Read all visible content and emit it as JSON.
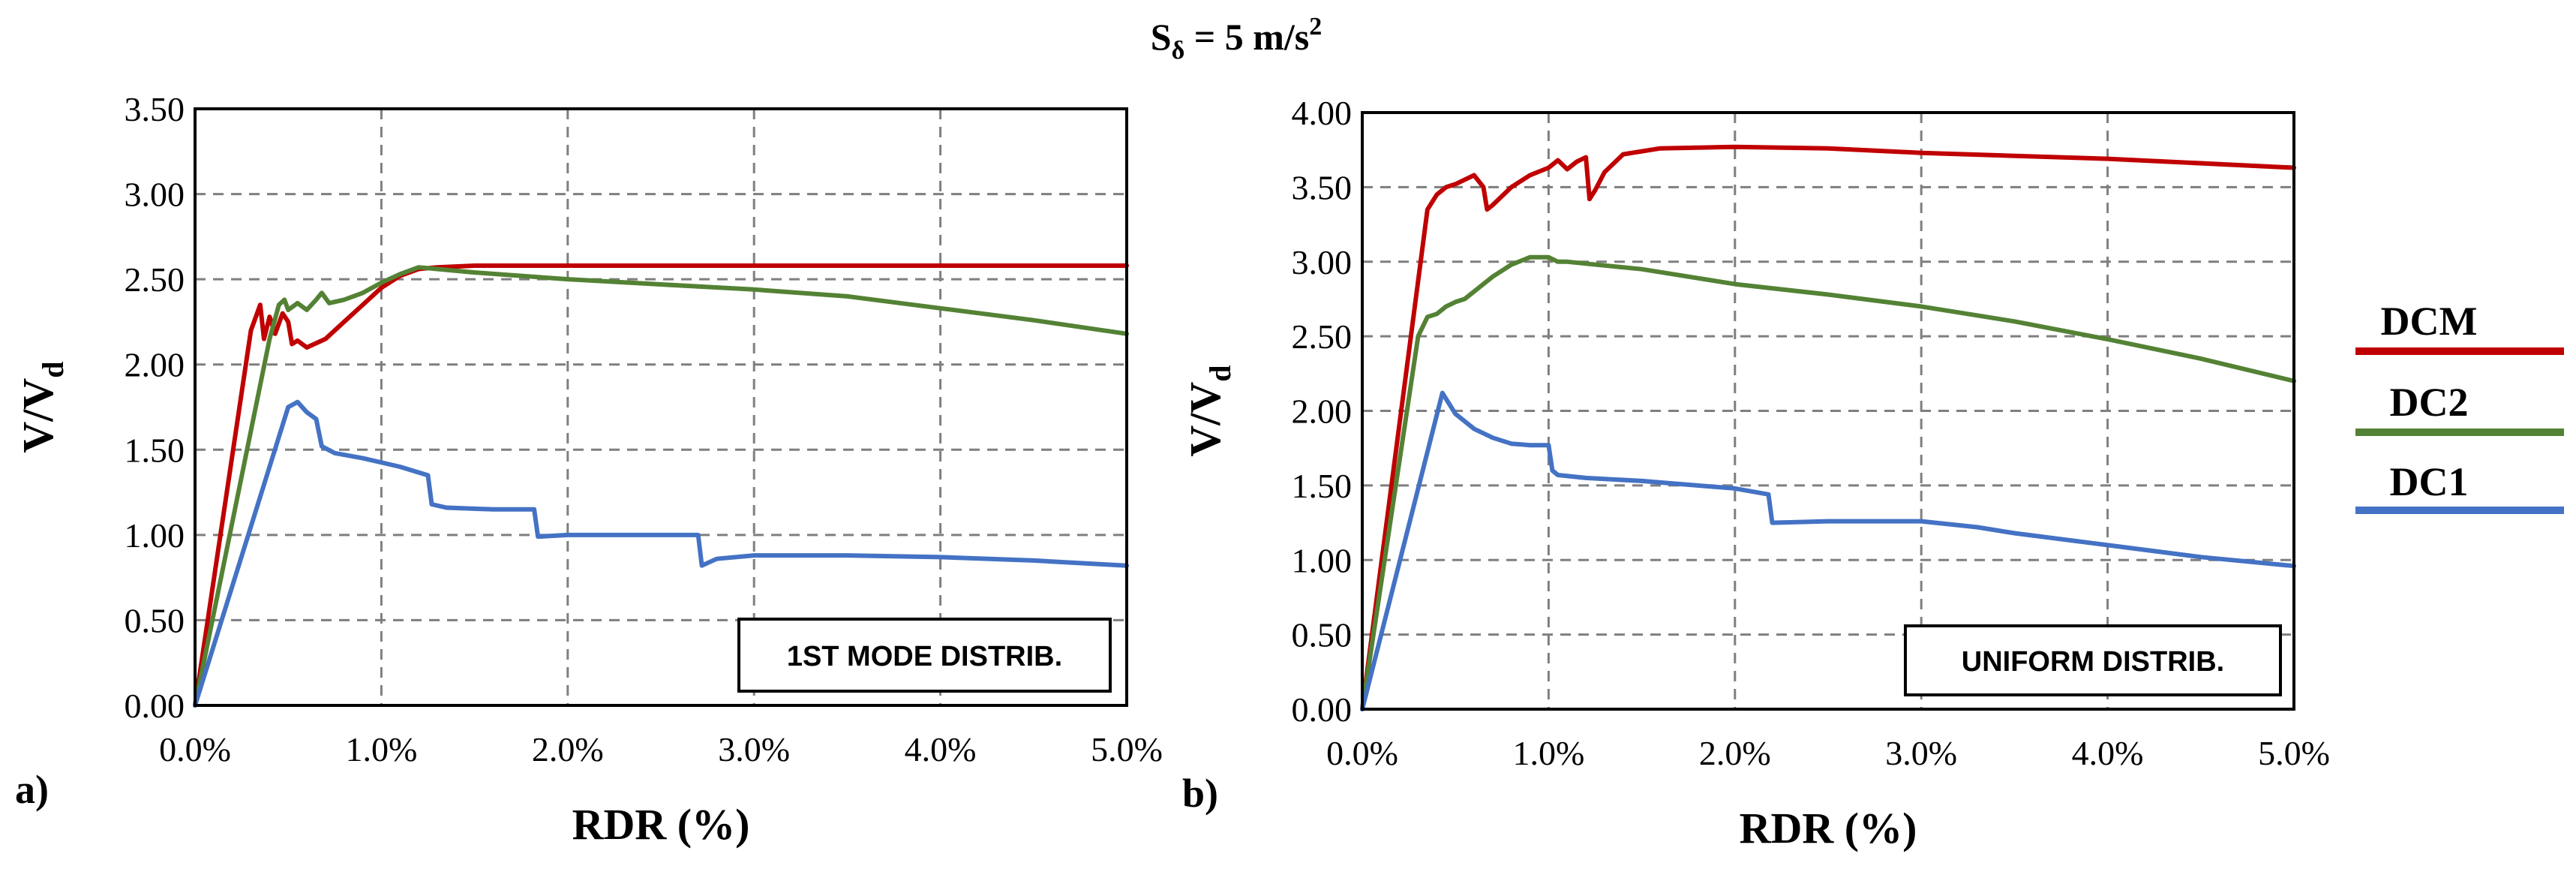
{
  "figure": {
    "suptitle_main": "S",
    "suptitle_sub": "δ",
    "suptitle_rest": " = 5 m/s",
    "suptitle_sup": "2"
  },
  "legend": {
    "entries": [
      {
        "label": "DCM",
        "color": "#c00000"
      },
      {
        "label": "DC2",
        "color": "#548235"
      },
      {
        "label": "DC1",
        "color": "#4472c4"
      }
    ]
  },
  "chart_data": [
    {
      "type": "line",
      "panel_label": "a)",
      "box_label": "1ST MODE DISTRIB.",
      "xlabel": "RDR (%)",
      "ylabel_main": "V/V",
      "ylabel_sub": "d",
      "xlim": [
        0,
        5
      ],
      "ylim": [
        0,
        3.5
      ],
      "xticks": [
        0,
        1,
        2,
        3,
        4,
        5
      ],
      "xtick_labels": [
        "0.0%",
        "1.0%",
        "2.0%",
        "3.0%",
        "4.0%",
        "5.0%"
      ],
      "yticks": [
        0,
        0.5,
        1,
        1.5,
        2,
        2.5,
        3,
        3.5
      ],
      "ytick_labels": [
        "0.00",
        "0.50",
        "1.00",
        "1.50",
        "2.00",
        "2.50",
        "3.00",
        "3.50"
      ],
      "grid": true,
      "series": [
        {
          "name": "DCM",
          "color": "#c00000",
          "points": [
            [
              0,
              0
            ],
            [
              0.3,
              2.2
            ],
            [
              0.35,
              2.35
            ],
            [
              0.37,
              2.15
            ],
            [
              0.4,
              2.28
            ],
            [
              0.43,
              2.18
            ],
            [
              0.47,
              2.3
            ],
            [
              0.5,
              2.25
            ],
            [
              0.52,
              2.12
            ],
            [
              0.55,
              2.14
            ],
            [
              0.6,
              2.1
            ],
            [
              0.7,
              2.15
            ],
            [
              0.8,
              2.25
            ],
            [
              0.9,
              2.35
            ],
            [
              1.0,
              2.45
            ],
            [
              1.1,
              2.52
            ],
            [
              1.2,
              2.56
            ],
            [
              1.3,
              2.57
            ],
            [
              1.5,
              2.58
            ],
            [
              2.0,
              2.58
            ],
            [
              2.5,
              2.58
            ],
            [
              3.0,
              2.58
            ],
            [
              4.0,
              2.58
            ],
            [
              5.0,
              2.58
            ]
          ]
        },
        {
          "name": "DC2",
          "color": "#548235",
          "points": [
            [
              0,
              0
            ],
            [
              0.4,
              2.15
            ],
            [
              0.45,
              2.35
            ],
            [
              0.48,
              2.38
            ],
            [
              0.5,
              2.32
            ],
            [
              0.55,
              2.36
            ],
            [
              0.6,
              2.32
            ],
            [
              0.65,
              2.38
            ],
            [
              0.68,
              2.42
            ],
            [
              0.72,
              2.36
            ],
            [
              0.8,
              2.38
            ],
            [
              0.9,
              2.42
            ],
            [
              1.0,
              2.48
            ],
            [
              1.1,
              2.53
            ],
            [
              1.2,
              2.57
            ],
            [
              1.3,
              2.56
            ],
            [
              1.5,
              2.54
            ],
            [
              2.0,
              2.5
            ],
            [
              2.5,
              2.47
            ],
            [
              3.0,
              2.44
            ],
            [
              3.5,
              2.4
            ],
            [
              4.0,
              2.33
            ],
            [
              4.5,
              2.26
            ],
            [
              5.0,
              2.18
            ]
          ]
        },
        {
          "name": "DC1",
          "color": "#4472c4",
          "points": [
            [
              0,
              0
            ],
            [
              0.5,
              1.75
            ],
            [
              0.55,
              1.78
            ],
            [
              0.6,
              1.72
            ],
            [
              0.65,
              1.68
            ],
            [
              0.68,
              1.52
            ],
            [
              0.75,
              1.48
            ],
            [
              0.9,
              1.45
            ],
            [
              1.1,
              1.4
            ],
            [
              1.25,
              1.35
            ],
            [
              1.27,
              1.18
            ],
            [
              1.35,
              1.16
            ],
            [
              1.6,
              1.15
            ],
            [
              1.82,
              1.15
            ],
            [
              1.84,
              0.99
            ],
            [
              2.0,
              1.0
            ],
            [
              2.3,
              1.0
            ],
            [
              2.7,
              1.0
            ],
            [
              2.72,
              0.82
            ],
            [
              2.8,
              0.86
            ],
            [
              3.0,
              0.88
            ],
            [
              3.5,
              0.88
            ],
            [
              4.0,
              0.87
            ],
            [
              4.5,
              0.85
            ],
            [
              5.0,
              0.82
            ]
          ]
        }
      ]
    },
    {
      "type": "line",
      "panel_label": "b)",
      "box_label": "UNIFORM DISTRIB.",
      "xlabel": "RDR (%)",
      "ylabel_main": "V/V",
      "ylabel_sub": "d",
      "xlim": [
        0,
        5
      ],
      "ylim": [
        0,
        4
      ],
      "xticks": [
        0,
        1,
        2,
        3,
        4,
        5
      ],
      "xtick_labels": [
        "0.0%",
        "1.0%",
        "2.0%",
        "3.0%",
        "4.0%",
        "5.0%"
      ],
      "yticks": [
        0,
        0.5,
        1,
        1.5,
        2,
        2.5,
        3,
        3.5,
        4
      ],
      "ytick_labels": [
        "0.00",
        "0.50",
        "1.00",
        "1.50",
        "2.00",
        "2.50",
        "3.00",
        "3.50",
        "4.00"
      ],
      "grid": true,
      "series": [
        {
          "name": "DCM",
          "color": "#c00000",
          "points": [
            [
              0,
              0
            ],
            [
              0.35,
              3.35
            ],
            [
              0.4,
              3.45
            ],
            [
              0.45,
              3.5
            ],
            [
              0.5,
              3.52
            ],
            [
              0.55,
              3.55
            ],
            [
              0.6,
              3.58
            ],
            [
              0.65,
              3.5
            ],
            [
              0.67,
              3.35
            ],
            [
              0.7,
              3.38
            ],
            [
              0.8,
              3.5
            ],
            [
              0.9,
              3.58
            ],
            [
              1.0,
              3.63
            ],
            [
              1.05,
              3.68
            ],
            [
              1.1,
              3.62
            ],
            [
              1.15,
              3.67
            ],
            [
              1.2,
              3.7
            ],
            [
              1.22,
              3.42
            ],
            [
              1.25,
              3.48
            ],
            [
              1.3,
              3.6
            ],
            [
              1.4,
              3.72
            ],
            [
              1.6,
              3.76
            ],
            [
              2.0,
              3.77
            ],
            [
              2.5,
              3.76
            ],
            [
              3.0,
              3.73
            ],
            [
              4.0,
              3.69
            ],
            [
              5.0,
              3.63
            ]
          ]
        },
        {
          "name": "DC2",
          "color": "#548235",
          "points": [
            [
              0,
              0
            ],
            [
              0.3,
              2.5
            ],
            [
              0.35,
              2.63
            ],
            [
              0.4,
              2.65
            ],
            [
              0.45,
              2.7
            ],
            [
              0.5,
              2.73
            ],
            [
              0.55,
              2.75
            ],
            [
              0.6,
              2.8
            ],
            [
              0.7,
              2.9
            ],
            [
              0.8,
              2.98
            ],
            [
              0.9,
              3.03
            ],
            [
              1.0,
              3.03
            ],
            [
              1.05,
              3.0
            ],
            [
              1.1,
              3.0
            ],
            [
              1.5,
              2.95
            ],
            [
              2.0,
              2.85
            ],
            [
              2.5,
              2.78
            ],
            [
              3.0,
              2.7
            ],
            [
              3.5,
              2.6
            ],
            [
              4.0,
              2.48
            ],
            [
              4.5,
              2.35
            ],
            [
              5.0,
              2.2
            ]
          ]
        },
        {
          "name": "DC1",
          "color": "#4472c4",
          "points": [
            [
              0,
              0
            ],
            [
              0.43,
              2.12
            ],
            [
              0.5,
              1.98
            ],
            [
              0.6,
              1.88
            ],
            [
              0.7,
              1.82
            ],
            [
              0.8,
              1.78
            ],
            [
              0.9,
              1.77
            ],
            [
              1.0,
              1.77
            ],
            [
              1.02,
              1.6
            ],
            [
              1.05,
              1.57
            ],
            [
              1.2,
              1.55
            ],
            [
              1.5,
              1.53
            ],
            [
              2.0,
              1.48
            ],
            [
              2.18,
              1.44
            ],
            [
              2.2,
              1.25
            ],
            [
              2.5,
              1.26
            ],
            [
              3.0,
              1.26
            ],
            [
              3.3,
              1.22
            ],
            [
              3.5,
              1.18
            ],
            [
              4.0,
              1.1
            ],
            [
              4.5,
              1.02
            ],
            [
              5.0,
              0.96
            ]
          ]
        }
      ]
    }
  ]
}
